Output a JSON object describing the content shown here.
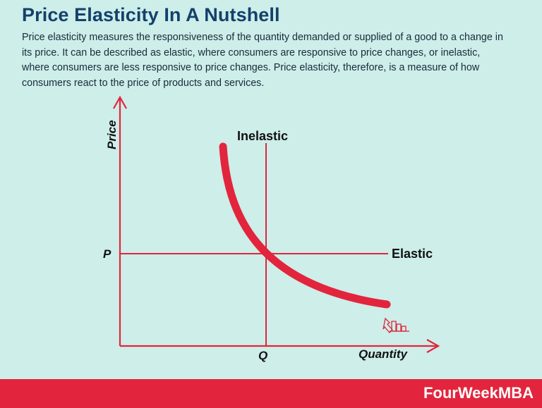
{
  "title": "Price Elasticity In A Nutshell",
  "description": "Price elasticity measures the responsiveness of the quantity demanded or supplied of a good to a change in its price. It can be described as elastic, where consumers are responsive to price changes, or inelastic, where consumers are less responsive to price changes. Price elasticity, therefore, is a measure of how consumers react to the price of products and services.",
  "diagram": {
    "y_axis_label": "Price",
    "x_axis_label": "Quantity",
    "p_label": "P",
    "q_label": "Q",
    "inelastic_label": "Inelastic",
    "elastic_label": "Elastic",
    "cursor_icon": "hand-pointer-chart-icon"
  },
  "footer": {
    "brand": "FourWeekMBA"
  },
  "colors": {
    "accent_red": "#e2253d",
    "title_blue": "#14406b",
    "background": "#cdeee9"
  }
}
